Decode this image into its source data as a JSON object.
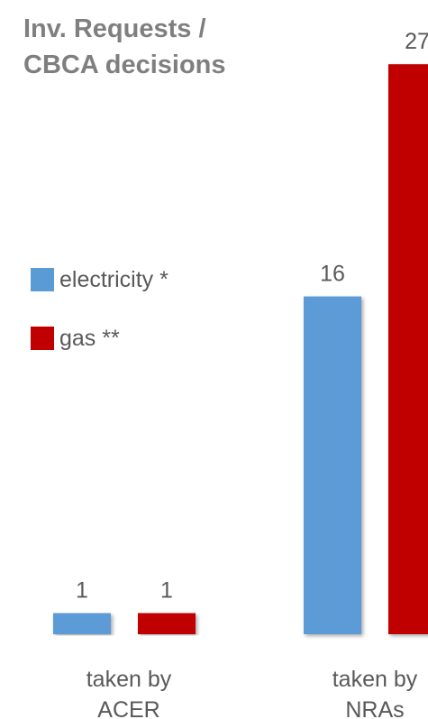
{
  "chart_data": {
    "type": "bar",
    "title": "Inv. Requests /\nCBCA decisions",
    "categories": [
      "taken by\nACER",
      "taken by\nNRAs"
    ],
    "series": [
      {
        "name": "electricity *",
        "color": "#5b9bd5",
        "values": [
          1,
          16
        ]
      },
      {
        "name": "gas **",
        "color": "#c00000",
        "values": [
          1,
          27
        ]
      }
    ],
    "data_labels": true,
    "legend": "left",
    "grid": false
  }
}
